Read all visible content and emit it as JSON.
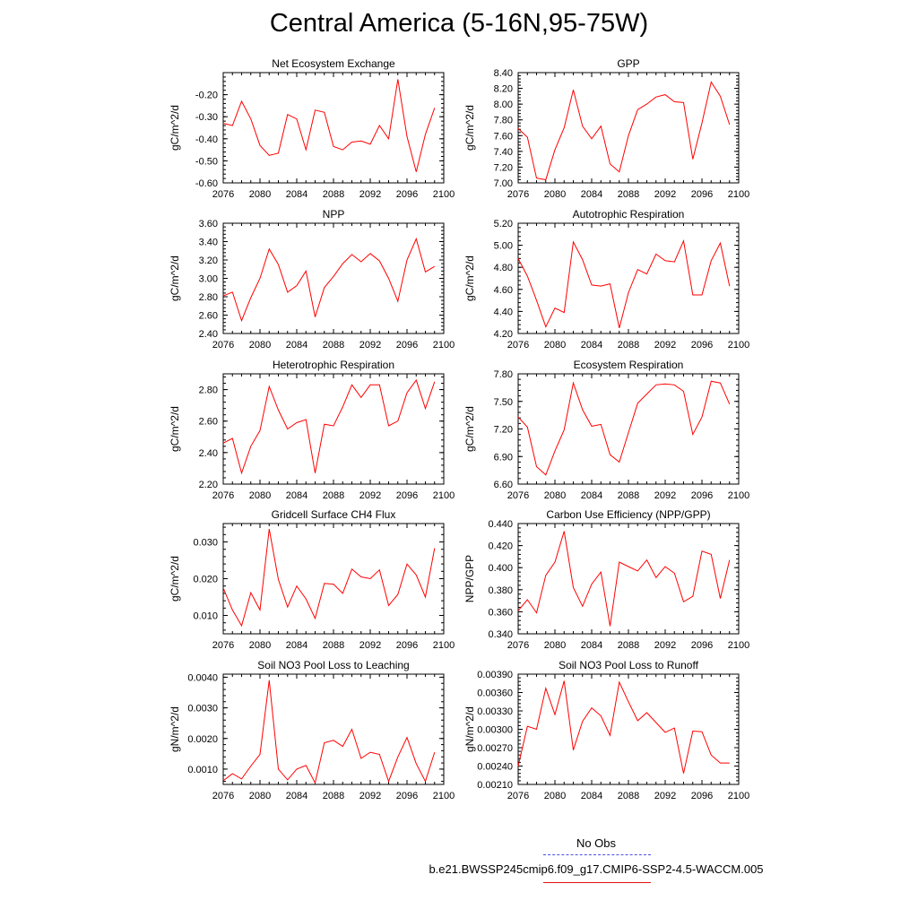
{
  "title": "Central America (5-16N,95-75W)",
  "colors": {
    "series": "#ff0000",
    "obs": "#5050e0",
    "axis": "#000000"
  },
  "legend": {
    "obs_label": "No Obs",
    "model_label": "b.e21.BWSSP245cmip6.f09_g17.CMIP6-SSP2-4.5-WACCM.005"
  },
  "chart_data": [
    {
      "type": "line",
      "title": "Net Ecosystem Exchange",
      "ylabel": "gC/m^2/d",
      "xlim": [
        2076,
        2100
      ],
      "xticks": [
        2076,
        2080,
        2084,
        2088,
        2092,
        2096,
        2100
      ],
      "ylim": [
        -0.6,
        -0.1
      ],
      "yticks": [
        "-0.60",
        "-0.50",
        "-0.40",
        "-0.30",
        "-0.20"
      ],
      "x": [
        2076,
        2077,
        2078,
        2079,
        2080,
        2081,
        2082,
        2083,
        2084,
        2085,
        2086,
        2087,
        2088,
        2089,
        2090,
        2091,
        2092,
        2093,
        2094,
        2095,
        2096,
        2097,
        2098,
        2099
      ],
      "values": [
        -0.33,
        -0.34,
        -0.23,
        -0.31,
        -0.43,
        -0.475,
        -0.465,
        -0.29,
        -0.31,
        -0.45,
        -0.27,
        -0.28,
        -0.435,
        -0.45,
        -0.415,
        -0.41,
        -0.425,
        -0.34,
        -0.4,
        -0.13,
        -0.39,
        -0.55,
        -0.38,
        -0.26
      ]
    },
    {
      "type": "line",
      "title": "GPP",
      "ylabel": "gC/m^2/d",
      "xlim": [
        2076,
        2100
      ],
      "xticks": [
        2076,
        2080,
        2084,
        2088,
        2092,
        2096,
        2100
      ],
      "ylim": [
        7.0,
        8.4
      ],
      "yticks": [
        "7.00",
        "7.20",
        "7.40",
        "7.60",
        "7.80",
        "8.00",
        "8.20",
        "8.40"
      ],
      "x": [
        2076,
        2077,
        2078,
        2079,
        2080,
        2081,
        2082,
        2083,
        2084,
        2085,
        2086,
        2087,
        2088,
        2089,
        2090,
        2091,
        2092,
        2093,
        2094,
        2095,
        2096,
        2097,
        2098,
        2099
      ],
      "values": [
        7.69,
        7.58,
        7.06,
        7.04,
        7.42,
        7.7,
        8.18,
        7.72,
        7.56,
        7.72,
        7.24,
        7.14,
        7.6,
        7.93,
        8.0,
        8.09,
        8.12,
        8.03,
        8.02,
        7.3,
        7.76,
        8.28,
        8.1,
        7.74
      ]
    },
    {
      "type": "line",
      "title": "NPP",
      "ylabel": "gC/m^2/d",
      "xlim": [
        2076,
        2100
      ],
      "xticks": [
        2076,
        2080,
        2084,
        2088,
        2092,
        2096,
        2100
      ],
      "ylim": [
        2.4,
        3.6
      ],
      "yticks": [
        "2.40",
        "2.60",
        "2.80",
        "3.00",
        "3.20",
        "3.40",
        "3.60"
      ],
      "x": [
        2076,
        2077,
        2078,
        2079,
        2080,
        2081,
        2082,
        2083,
        2084,
        2085,
        2086,
        2087,
        2088,
        2089,
        2090,
        2091,
        2092,
        2093,
        2094,
        2095,
        2096,
        2097,
        2098,
        2099
      ],
      "values": [
        2.81,
        2.85,
        2.54,
        2.79,
        3.0,
        3.32,
        3.15,
        2.85,
        2.92,
        3.08,
        2.58,
        2.9,
        3.02,
        3.16,
        3.26,
        3.18,
        3.27,
        3.19,
        3.0,
        2.75,
        3.2,
        3.43,
        3.07,
        3.13
      ]
    },
    {
      "type": "line",
      "title": "Autotrophic Respiration",
      "ylabel": "gC/m^2/d",
      "xlim": [
        2076,
        2100
      ],
      "xticks": [
        2076,
        2080,
        2084,
        2088,
        2092,
        2096,
        2100
      ],
      "ylim": [
        4.2,
        5.2
      ],
      "yticks": [
        "4.20",
        "4.40",
        "4.60",
        "4.80",
        "5.00",
        "5.20"
      ],
      "x": [
        2076,
        2077,
        2078,
        2079,
        2080,
        2081,
        2082,
        2083,
        2084,
        2085,
        2086,
        2087,
        2088,
        2089,
        2090,
        2091,
        2092,
        2093,
        2094,
        2095,
        2096,
        2097,
        2098,
        2099
      ],
      "values": [
        4.88,
        4.72,
        4.5,
        4.26,
        4.43,
        4.39,
        5.03,
        4.87,
        4.64,
        4.63,
        4.65,
        4.25,
        4.57,
        4.78,
        4.74,
        4.92,
        4.86,
        4.85,
        5.04,
        4.55,
        4.55,
        4.86,
        5.02,
        4.63
      ]
    },
    {
      "type": "line",
      "title": "Heterotrophic Respiration",
      "ylabel": "gC/m^2/d",
      "xlim": [
        2076,
        2100
      ],
      "xticks": [
        2076,
        2080,
        2084,
        2088,
        2092,
        2096,
        2100
      ],
      "ylim": [
        2.2,
        2.9
      ],
      "yticks": [
        "2.20",
        "2.40",
        "2.60",
        "2.80"
      ],
      "x": [
        2076,
        2077,
        2078,
        2079,
        2080,
        2081,
        2082,
        2083,
        2084,
        2085,
        2086,
        2087,
        2088,
        2089,
        2090,
        2091,
        2092,
        2093,
        2094,
        2095,
        2096,
        2097,
        2098,
        2099
      ],
      "values": [
        2.46,
        2.49,
        2.27,
        2.44,
        2.54,
        2.82,
        2.67,
        2.55,
        2.59,
        2.61,
        2.27,
        2.58,
        2.57,
        2.69,
        2.83,
        2.75,
        2.83,
        2.83,
        2.57,
        2.6,
        2.78,
        2.86,
        2.68,
        2.85
      ]
    },
    {
      "type": "line",
      "title": "Ecosystem Respiration",
      "ylabel": "gC/m^2/d",
      "xlim": [
        2076,
        2100
      ],
      "xticks": [
        2076,
        2080,
        2084,
        2088,
        2092,
        2096,
        2100
      ],
      "ylim": [
        6.6,
        7.8
      ],
      "yticks": [
        "6.60",
        "6.90",
        "7.20",
        "7.50",
        "7.80"
      ],
      "x": [
        2076,
        2077,
        2078,
        2079,
        2080,
        2081,
        2082,
        2083,
        2084,
        2085,
        2086,
        2087,
        2088,
        2089,
        2090,
        2091,
        2092,
        2093,
        2094,
        2095,
        2096,
        2097,
        2098,
        2099
      ],
      "values": [
        7.33,
        7.22,
        6.79,
        6.7,
        6.96,
        7.19,
        7.7,
        7.41,
        7.23,
        7.25,
        6.92,
        6.84,
        7.16,
        7.48,
        7.58,
        7.68,
        7.69,
        7.68,
        7.61,
        7.14,
        7.33,
        7.72,
        7.7,
        7.47
      ]
    },
    {
      "type": "line",
      "title": "Gridcell Surface CH4 Flux",
      "ylabel": "gC/m^2/d",
      "xlim": [
        2076,
        2100
      ],
      "xticks": [
        2076,
        2080,
        2084,
        2088,
        2092,
        2096,
        2100
      ],
      "ylim": [
        0.005,
        0.035
      ],
      "yticks": [
        "0.010",
        "0.020",
        "0.030"
      ],
      "x": [
        2076,
        2077,
        2078,
        2079,
        2080,
        2081,
        2082,
        2083,
        2084,
        2085,
        2086,
        2087,
        2088,
        2089,
        2090,
        2091,
        2092,
        2093,
        2094,
        2095,
        2096,
        2097,
        2098,
        2099
      ],
      "values": [
        0.0175,
        0.0115,
        0.0072,
        0.0162,
        0.0115,
        0.0335,
        0.0198,
        0.0123,
        0.018,
        0.0145,
        0.0092,
        0.0187,
        0.0185,
        0.016,
        0.0226,
        0.0205,
        0.02,
        0.0224,
        0.0127,
        0.0157,
        0.024,
        0.021,
        0.015,
        0.0283
      ]
    },
    {
      "type": "line",
      "title": "Carbon Use Efficiency (NPP/GPP)",
      "ylabel": "NPP/GPP",
      "xlim": [
        2076,
        2100
      ],
      "xticks": [
        2076,
        2080,
        2084,
        2088,
        2092,
        2096,
        2100
      ],
      "ylim": [
        0.34,
        0.44
      ],
      "yticks": [
        "0.340",
        "0.360",
        "0.380",
        "0.400",
        "0.420",
        "0.440"
      ],
      "x": [
        2076,
        2077,
        2078,
        2079,
        2080,
        2081,
        2082,
        2083,
        2084,
        2085,
        2086,
        2087,
        2088,
        2089,
        2090,
        2091,
        2092,
        2093,
        2094,
        2095,
        2096,
        2097,
        2098,
        2099
      ],
      "values": [
        0.361,
        0.371,
        0.359,
        0.393,
        0.405,
        0.433,
        0.382,
        0.365,
        0.385,
        0.396,
        0.347,
        0.405,
        0.401,
        0.397,
        0.407,
        0.391,
        0.401,
        0.395,
        0.369,
        0.374,
        0.415,
        0.412,
        0.372,
        0.407
      ]
    },
    {
      "type": "line",
      "title": "Soil NO3 Pool Loss to Leaching",
      "ylabel": "gN/m^2/d",
      "xlim": [
        2076,
        2100
      ],
      "xticks": [
        2076,
        2080,
        2084,
        2088,
        2092,
        2096,
        2100
      ],
      "ylim": [
        0.0005,
        0.0041
      ],
      "yticks": [
        "0.0010",
        "0.0020",
        "0.0030",
        "0.0040"
      ],
      "x": [
        2076,
        2077,
        2078,
        2079,
        2080,
        2081,
        2082,
        2083,
        2084,
        2085,
        2086,
        2087,
        2088,
        2089,
        2090,
        2091,
        2092,
        2093,
        2094,
        2095,
        2096,
        2097,
        2098,
        2099
      ],
      "values": [
        0.00062,
        0.00085,
        0.00068,
        0.0011,
        0.00148,
        0.0039,
        0.001,
        0.00065,
        0.001,
        0.00112,
        0.00055,
        0.00186,
        0.00194,
        0.00174,
        0.0023,
        0.00135,
        0.00155,
        0.00148,
        0.0006,
        0.0014,
        0.00203,
        0.00118,
        0.0006,
        0.00155
      ]
    },
    {
      "type": "line",
      "title": "Soil NO3 Pool Loss to Runoff",
      "ylabel": "gN/m^2/d",
      "xlim": [
        2076,
        2100
      ],
      "xticks": [
        2076,
        2080,
        2084,
        2088,
        2092,
        2096,
        2100
      ],
      "ylim": [
        0.0021,
        0.0039
      ],
      "yticks": [
        "0.00210",
        "0.00240",
        "0.00270",
        "0.00300",
        "0.00330",
        "0.00360",
        "0.00390"
      ],
      "x": [
        2076,
        2077,
        2078,
        2079,
        2080,
        2081,
        2082,
        2083,
        2084,
        2085,
        2086,
        2087,
        2088,
        2089,
        2090,
        2091,
        2092,
        2093,
        2094,
        2095,
        2096,
        2097,
        2098,
        2099
      ],
      "values": [
        0.0024,
        0.00305,
        0.003,
        0.00367,
        0.00324,
        0.00379,
        0.00266,
        0.00313,
        0.00335,
        0.00322,
        0.0029,
        0.00377,
        0.00345,
        0.00314,
        0.00327,
        0.00311,
        0.00295,
        0.00302,
        0.00228,
        0.00297,
        0.00296,
        0.00258,
        0.00245,
        0.00245
      ]
    }
  ]
}
